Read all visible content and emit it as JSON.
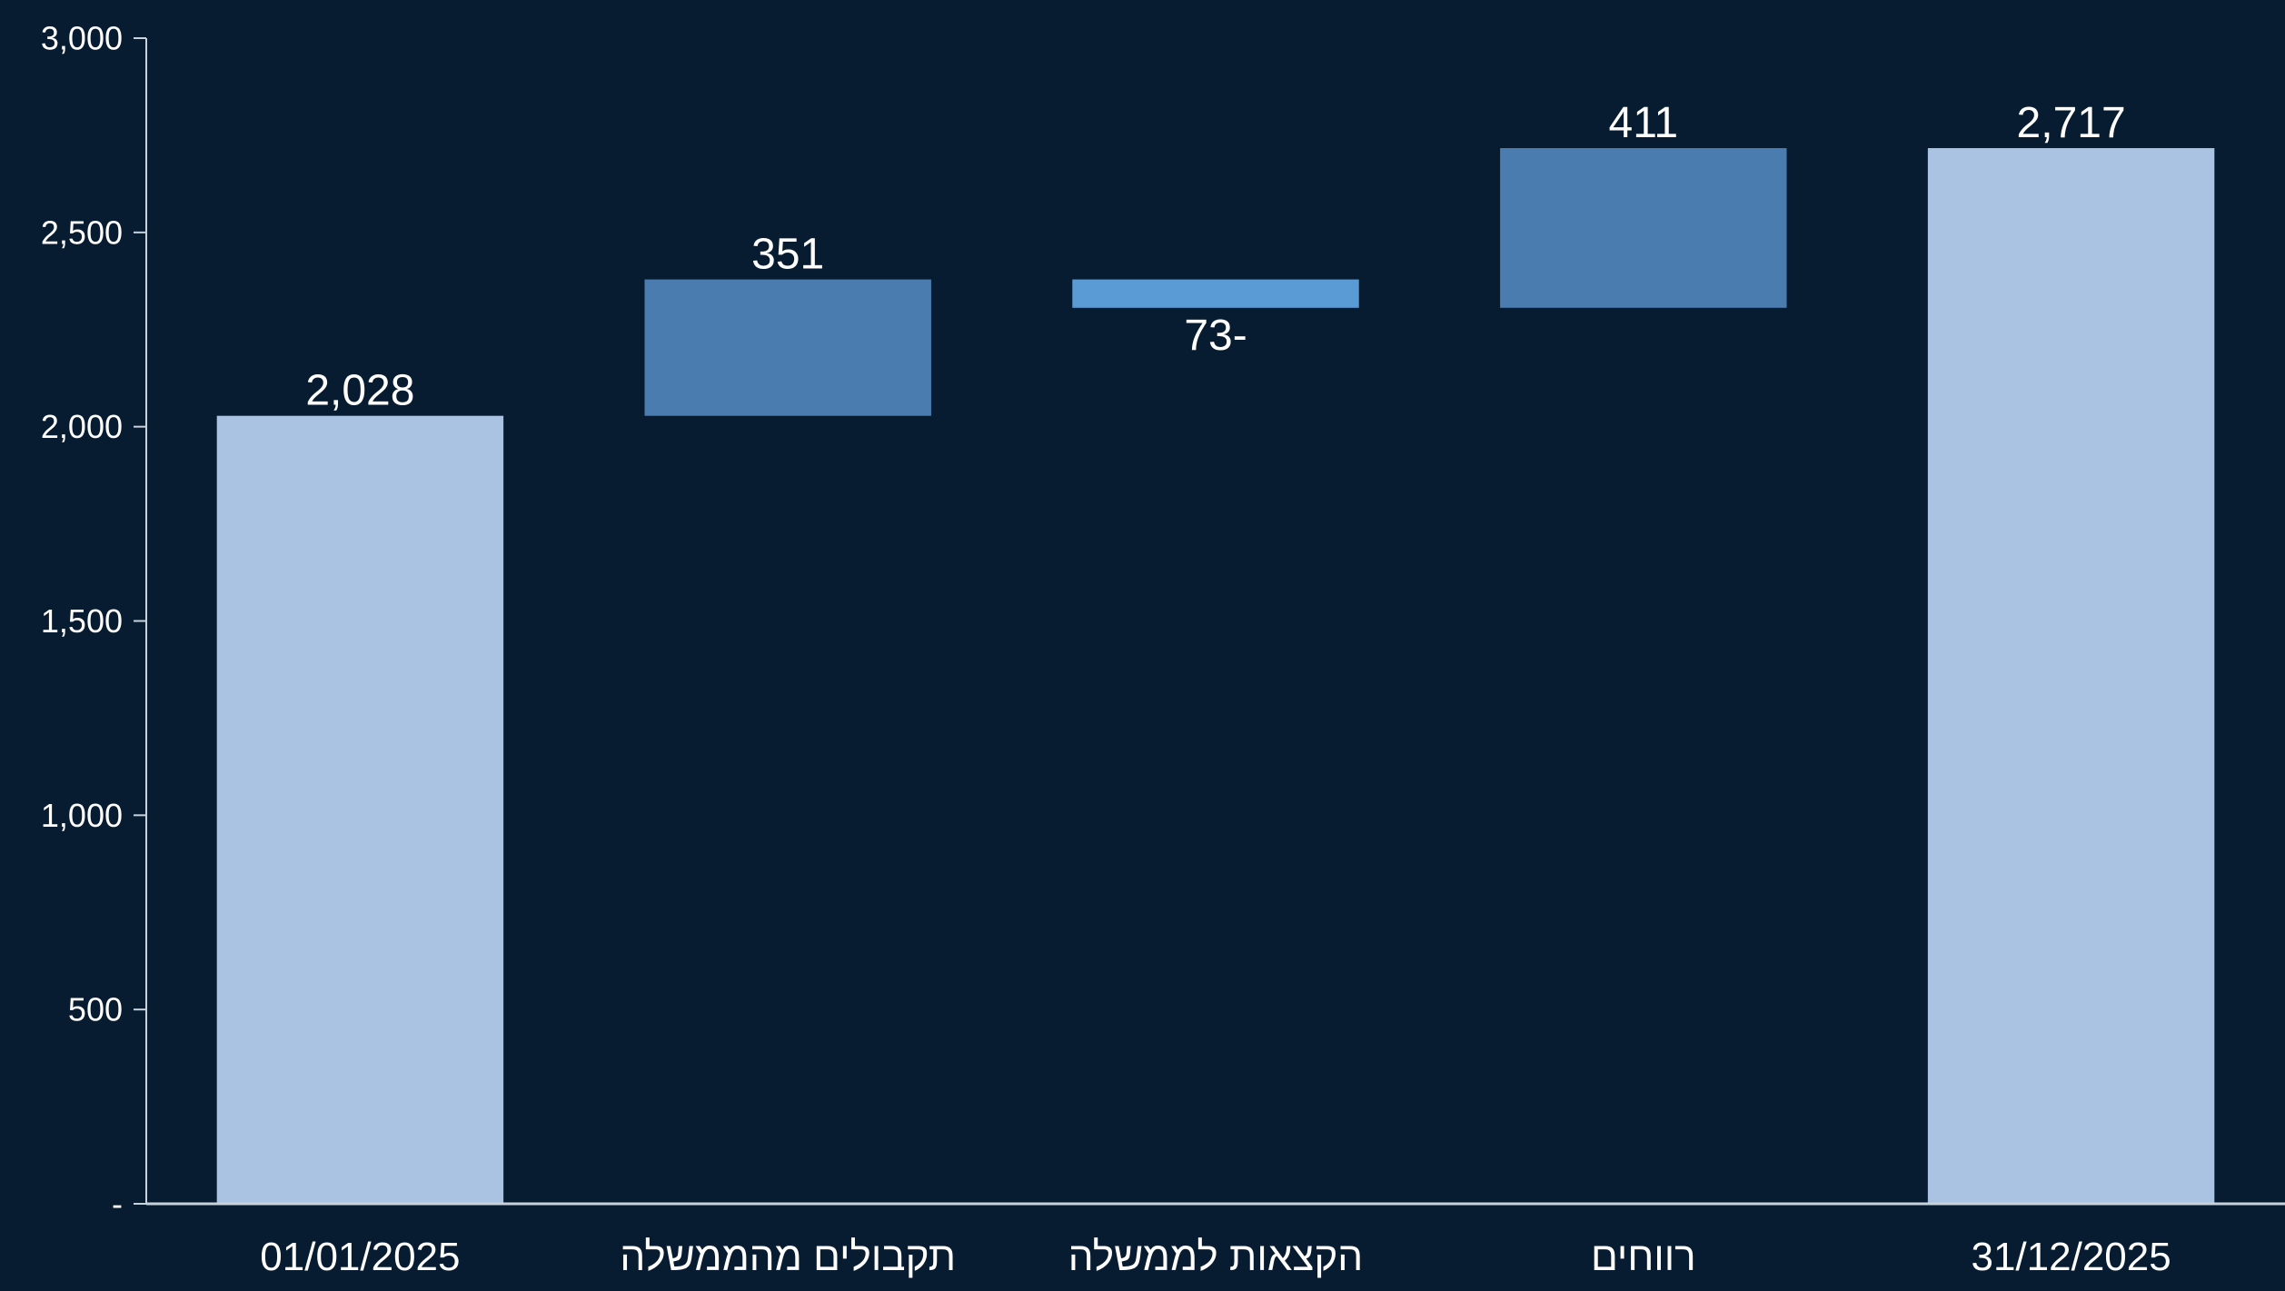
{
  "chart_data": {
    "type": "bar",
    "subtype": "waterfall",
    "categories": [
      "01/01/2025",
      "תקבולים מהממשלה",
      "הקצאות לממשלה",
      "רווחים",
      "31/12/2025"
    ],
    "series": [
      {
        "values": [
          2028,
          351,
          -73,
          411,
          2717
        ],
        "kinds": [
          "total",
          "increase",
          "decrease",
          "increase",
          "total"
        ],
        "data_labels": [
          "2,028",
          "351",
          "73-",
          "411",
          "2,717"
        ]
      }
    ],
    "y_ticks": [
      {
        "value": 0,
        "label": "-"
      },
      {
        "value": 500,
        "label": "500"
      },
      {
        "value": 1000,
        "label": "1,000"
      },
      {
        "value": 1500,
        "label": "1,500"
      },
      {
        "value": 2000,
        "label": "2,000"
      },
      {
        "value": 2500,
        "label": "2,500"
      },
      {
        "value": 3000,
        "label": "3,000"
      }
    ],
    "ylim": [
      0,
      3000
    ],
    "grid": false,
    "legend": "none",
    "title": "",
    "xlabel": "",
    "ylabel": ""
  },
  "colors": {
    "background": "#081c31",
    "total": "#aac3e2",
    "increase": "#4a7caf",
    "decrease": "#5b9bd5",
    "axis": "#c8d2dc",
    "text": "#ffffff"
  }
}
